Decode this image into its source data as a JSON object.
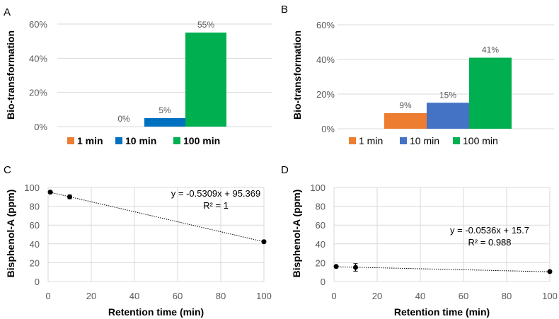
{
  "chart_data": [
    {
      "panel": "A",
      "type": "bar",
      "ylabel": "Bio-transformation",
      "ylim": [
        0,
        60
      ],
      "yticks": [
        "0%",
        "20%",
        "40%",
        "60%"
      ],
      "series": [
        {
          "name": "1 min",
          "value": 0,
          "label": "0%",
          "color": "#ED7D31"
        },
        {
          "name": "10 min",
          "value": 5,
          "label": "5%",
          "color": "#0070C0"
        },
        {
          "name": "100 min",
          "value": 55,
          "label": "55%",
          "color": "#00B050"
        }
      ],
      "legend_bold": true,
      "legend": "bottom"
    },
    {
      "panel": "B",
      "type": "bar",
      "ylabel": "Bio-transformation",
      "ylim": [
        0,
        60
      ],
      "yticks": [
        "0%",
        "20%",
        "40%",
        "60%"
      ],
      "series": [
        {
          "name": "1 min",
          "value": 9,
          "label": "9%",
          "color": "#ED7D31"
        },
        {
          "name": "10 min",
          "value": 15,
          "label": "15%",
          "color": "#4472C4"
        },
        {
          "name": "100 min",
          "value": 41,
          "label": "41%",
          "color": "#00B050"
        }
      ],
      "legend_bold": false,
      "legend": "bottom"
    },
    {
      "panel": "C",
      "type": "scatter",
      "xlabel": "Retention time (min)",
      "ylabel": "Bisphenol-A (ppm)",
      "xlim": [
        0,
        100
      ],
      "ylim": [
        0,
        100
      ],
      "xticks": [
        "0",
        "20",
        "40",
        "60",
        "80",
        "100"
      ],
      "yticks": [
        "0",
        "20",
        "40",
        "60",
        "80",
        "100"
      ],
      "points": [
        {
          "x": 1,
          "y": 95,
          "err": 1
        },
        {
          "x": 10,
          "y": 90,
          "err": 2
        },
        {
          "x": 100,
          "y": 42.3,
          "err": 0.5
        }
      ],
      "trendline": {
        "slope": -0.5309,
        "intercept": 95.369
      },
      "equation": "y = -0.5309x + 95.369",
      "r2": "R² = 1"
    },
    {
      "panel": "D",
      "type": "scatter",
      "xlabel": "Retention time (min)",
      "ylabel": "Bisphenol-A (ppm)",
      "xlim": [
        0,
        100
      ],
      "ylim": [
        0,
        100
      ],
      "xticks": [
        "0",
        "20",
        "40",
        "60",
        "80",
        "100"
      ],
      "yticks": [
        "0",
        "20",
        "40",
        "60",
        "80",
        "100"
      ],
      "points": [
        {
          "x": 1,
          "y": 16,
          "err": 0.5
        },
        {
          "x": 10,
          "y": 15,
          "err": 4
        },
        {
          "x": 100,
          "y": 10.5,
          "err": 0.5
        }
      ],
      "trendline": {
        "slope": -0.0536,
        "intercept": 15.7
      },
      "equation": "y = -0.0536x + 15.7",
      "r2": "R² = 0.988"
    }
  ]
}
